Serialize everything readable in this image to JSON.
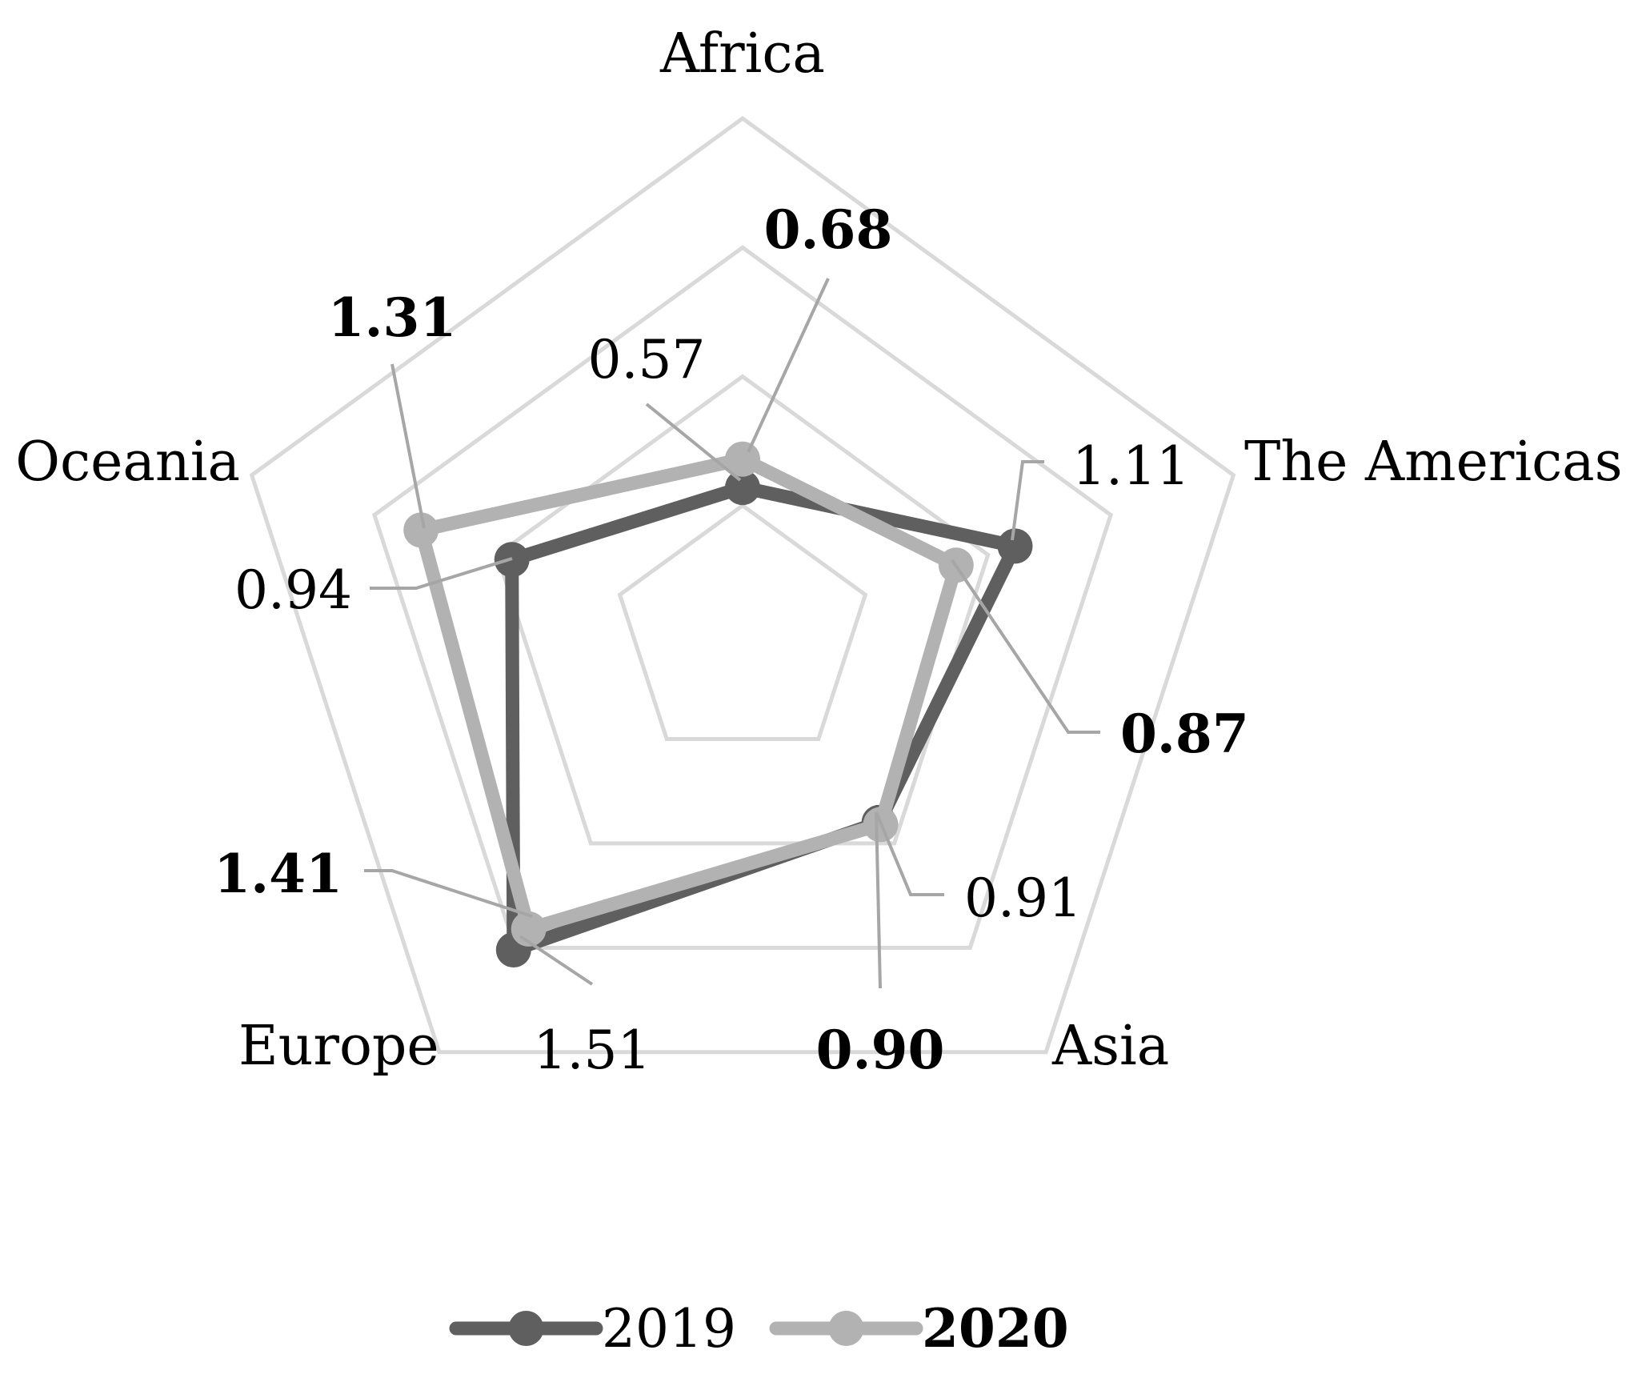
{
  "chart_data": {
    "type": "radar",
    "categories": [
      "Africa",
      "The Americas",
      "Asia",
      "Europe",
      "Oceania"
    ],
    "r_range": [
      0,
      2
    ],
    "grid_rings": [
      0.5,
      1.0,
      1.5,
      2.0
    ],
    "grid": true,
    "legend_position": "bottom",
    "series": [
      {
        "name": "2019",
        "values": [
          0.57,
          1.11,
          0.9,
          1.51,
          0.94
        ],
        "color": "#5f5f5f",
        "labels": [
          "0.57",
          "1.11",
          "0.90",
          "1.51",
          "0.94"
        ],
        "label_bold": [
          false,
          false,
          true,
          false,
          false
        ],
        "legend_bold": false
      },
      {
        "name": "2020",
        "values": [
          0.68,
          0.87,
          0.91,
          1.41,
          1.31
        ],
        "color": "#b2b2b2",
        "labels": [
          "0.68",
          "0.87",
          "0.91",
          "1.41",
          "1.31"
        ],
        "label_bold": [
          true,
          true,
          false,
          true,
          true
        ],
        "legend_bold": true
      }
    ],
    "grid_color": "#d9d9d9",
    "leader_color": "#a6a6a6"
  }
}
